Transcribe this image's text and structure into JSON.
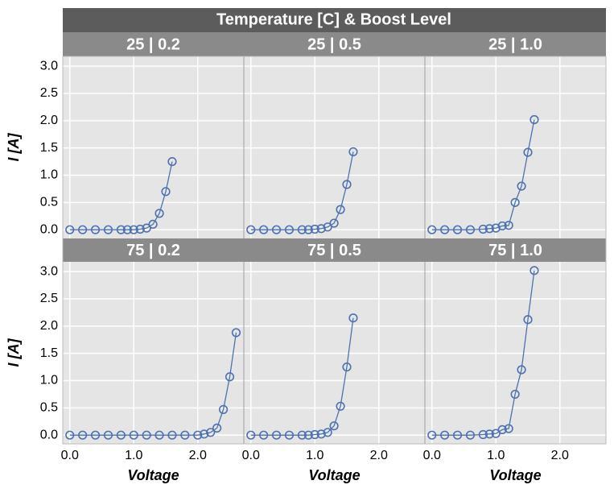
{
  "chart_data": {
    "type": "line",
    "title": "Temperature [C] & Boost Level",
    "xlabel": "Voltage",
    "ylabel": "I [A]",
    "color": "#4c72b0",
    "grid": true,
    "xlim": [
      -0.11,
      2.72
    ],
    "ylim": [
      -0.16,
      3.18
    ],
    "xticks": [
      {
        "value": 0,
        "label": "0.0"
      },
      {
        "value": 1,
        "label": "1.0"
      },
      {
        "value": 2,
        "label": "2.0"
      }
    ],
    "yticks": [
      {
        "value": 0,
        "label": "0.0"
      },
      0.5,
      {
        "value": 1,
        "label": "1.0"
      },
      1.5,
      {
        "value": 2,
        "label": "2.0"
      },
      2.5,
      {
        "value": 3,
        "label": "3.0"
      }
    ],
    "panels": [
      {
        "title": "25 | 0.2",
        "x": [
          0,
          0.2,
          0.4,
          0.6,
          0.8,
          0.9,
          1.0,
          1.1,
          1.2,
          1.3,
          1.4,
          1.5,
          1.6
        ],
        "values": [
          0,
          0,
          0,
          0,
          0,
          0,
          0,
          0.01,
          0.03,
          0.1,
          0.3,
          0.7,
          1.25
        ]
      },
      {
        "title": "25 | 0.5",
        "x": [
          0,
          0.2,
          0.4,
          0.6,
          0.8,
          0.9,
          1.0,
          1.1,
          1.2,
          1.3,
          1.4,
          1.5,
          1.6
        ],
        "values": [
          0,
          0,
          0,
          0,
          0,
          0,
          0.01,
          0.02,
          0.05,
          0.12,
          0.37,
          0.83,
          1.43
        ]
      },
      {
        "title": "25 | 1.0",
        "x": [
          0,
          0.2,
          0.4,
          0.6,
          0.8,
          0.9,
          1.0,
          1.1,
          1.2,
          1.3,
          1.4,
          1.5,
          1.6
        ],
        "values": [
          0,
          0,
          0,
          0,
          0.01,
          0.02,
          0.03,
          0.07,
          0.08,
          0.5,
          0.8,
          1.42,
          2.02
        ]
      },
      {
        "title": "75 | 0.2",
        "x": [
          0,
          0.2,
          0.4,
          0.6,
          0.8,
          1.0,
          1.2,
          1.4,
          1.6,
          1.8,
          2.0,
          2.1,
          2.2,
          2.3,
          2.4,
          2.5,
          2.6
        ],
        "values": [
          0,
          0,
          0,
          0,
          0,
          0,
          0,
          0,
          0,
          0,
          0,
          0.02,
          0.05,
          0.13,
          0.47,
          1.07,
          1.88
        ]
      },
      {
        "title": "75 | 0.5",
        "x": [
          0,
          0.2,
          0.4,
          0.6,
          0.8,
          0.9,
          1.0,
          1.1,
          1.2,
          1.3,
          1.4,
          1.5,
          1.6
        ],
        "values": [
          0,
          0,
          0,
          0,
          0,
          0,
          0.01,
          0.02,
          0.05,
          0.17,
          0.53,
          1.25,
          2.15
        ]
      },
      {
        "title": "75 | 1.0",
        "x": [
          0,
          0.2,
          0.4,
          0.6,
          0.8,
          0.9,
          1.0,
          1.1,
          1.2,
          1.3,
          1.4,
          1.5,
          1.6
        ],
        "values": [
          0,
          0,
          0,
          0,
          0.01,
          0.02,
          0.03,
          0.1,
          0.12,
          0.75,
          1.2,
          2.12,
          3.02
        ]
      }
    ]
  }
}
